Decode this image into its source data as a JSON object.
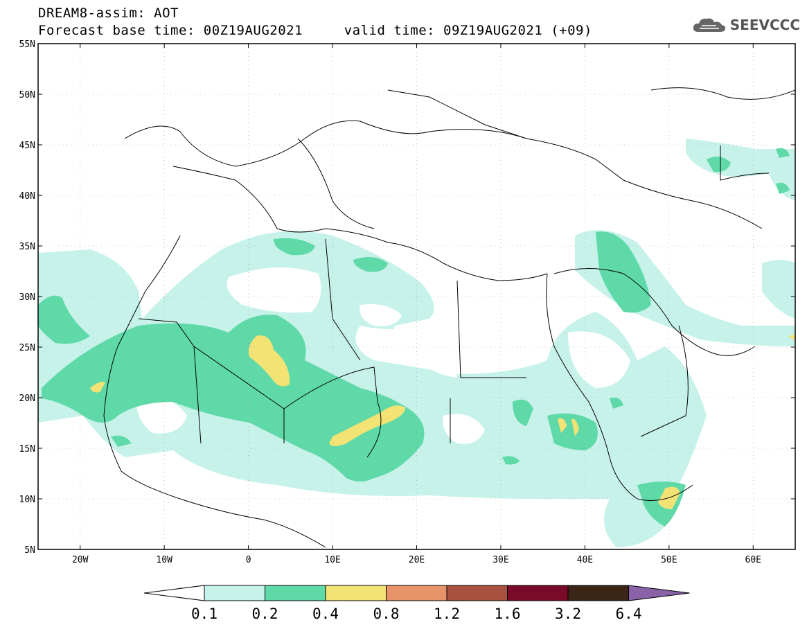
{
  "header": {
    "title_line1": "DREAM8-assim: AOT",
    "title_line2": "Forecast base time: 00Z19AUG2021     valid time: 09Z19AUG2021 (+09)"
  },
  "logo": {
    "text": "SEEVCCC",
    "icon": "cloud-icon"
  },
  "map": {
    "lon_range": [
      -25,
      65
    ],
    "lat_range": [
      5,
      55
    ],
    "lon_ticks": [
      {
        "value": -20,
        "label": "20W"
      },
      {
        "value": -10,
        "label": "10W"
      },
      {
        "value": 0,
        "label": "0"
      },
      {
        "value": 10,
        "label": "10E"
      },
      {
        "value": 20,
        "label": "20E"
      },
      {
        "value": 30,
        "label": "30E"
      },
      {
        "value": 40,
        "label": "40E"
      },
      {
        "value": 50,
        "label": "50E"
      },
      {
        "value": 60,
        "label": "60E"
      }
    ],
    "lat_ticks": [
      {
        "value": 55,
        "label": "55N"
      },
      {
        "value": 50,
        "label": "50N"
      },
      {
        "value": 45,
        "label": "45N"
      },
      {
        "value": 40,
        "label": "40N"
      },
      {
        "value": 35,
        "label": "35N"
      },
      {
        "value": 30,
        "label": "30N"
      },
      {
        "value": 25,
        "label": "25N"
      },
      {
        "value": 20,
        "label": "20N"
      },
      {
        "value": 15,
        "label": "15N"
      },
      {
        "value": 10,
        "label": "10N"
      },
      {
        "value": 5,
        "label": "5N"
      }
    ],
    "gridlines": true
  },
  "colorbar": {
    "thresholds": [
      "0.1",
      "0.2",
      "0.4",
      "0.8",
      "1.2",
      "1.6",
      "3.2",
      "6.4"
    ],
    "colors": [
      "#ffffff",
      "#c6f2ea",
      "#5fd9a8",
      "#f3e375",
      "#e8946a",
      "#a9513f",
      "#7a0a2a",
      "#3b2517",
      "#8a62a8"
    ]
  }
}
